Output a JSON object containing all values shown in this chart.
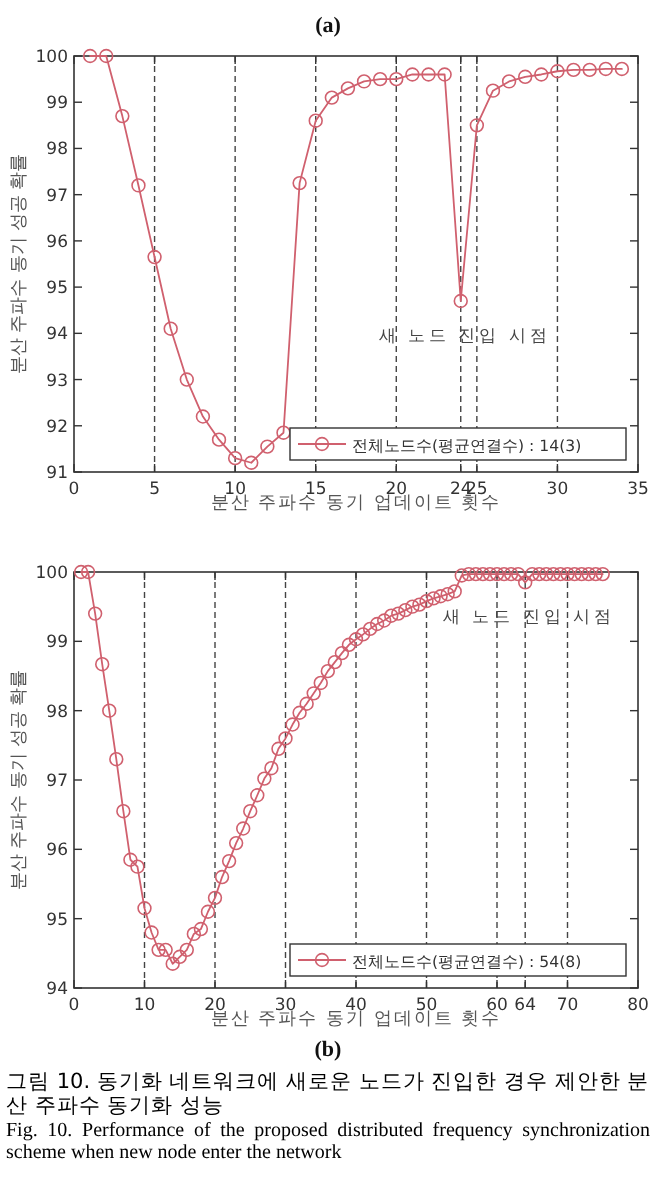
{
  "chart_data": [
    {
      "type": "line",
      "title": "(a)",
      "xlabel": "분산 주파수 동기 업데이트 횟수",
      "ylabel": "분산 주파수 동기 성공 확률",
      "x": [
        1,
        2,
        3,
        4,
        5,
        6,
        7,
        8,
        9,
        10,
        11,
        12,
        13,
        14,
        15,
        16,
        17,
        18,
        19,
        20,
        21,
        22,
        23,
        24,
        25,
        26,
        27,
        28,
        29,
        30,
        31,
        32,
        33,
        34
      ],
      "series": [
        {
          "name": "전체노드수(평균연결수) : 14(3)",
          "color": "#d0606e",
          "values": [
            100,
            100,
            98.7,
            97.2,
            95.65,
            94.1,
            93.0,
            92.2,
            91.7,
            91.3,
            91.2,
            91.55,
            91.85,
            97.25,
            98.6,
            99.1,
            99.3,
            99.45,
            99.5,
            99.5,
            99.6,
            99.6,
            99.6,
            94.7,
            98.5,
            99.25,
            99.45,
            99.55,
            99.6,
            99.67,
            99.7,
            99.7,
            99.72,
            99.72
          ]
        }
      ],
      "xlim": [
        0,
        35
      ],
      "ylim": [
        91,
        100
      ],
      "xticks": [
        0,
        5,
        10,
        15,
        20,
        24,
        25,
        30,
        35
      ],
      "yticks": [
        91,
        92,
        93,
        94,
        95,
        96,
        97,
        98,
        99,
        100
      ],
      "grid": "x",
      "legend": "bottom right",
      "marker": "circle",
      "line_style": "solid",
      "annotations": [
        {
          "text": "새 노드 진입 시점",
          "x": 24,
          "y": 94.7
        }
      ]
    },
    {
      "type": "line",
      "title": "(b)",
      "xlabel": "분산 주파수 동기 업데이트 횟수",
      "ylabel": "분산 주파수 동기 성공 확률",
      "x": [
        1,
        2,
        3,
        4,
        5,
        6,
        7,
        8,
        9,
        10,
        11,
        12,
        13,
        14,
        15,
        16,
        17,
        18,
        19,
        20,
        21,
        22,
        23,
        24,
        25,
        26,
        27,
        28,
        29,
        30,
        31,
        32,
        33,
        34,
        35,
        36,
        37,
        38,
        39,
        40,
        41,
        42,
        43,
        44,
        45,
        46,
        47,
        48,
        49,
        50,
        51,
        52,
        53,
        54,
        55,
        56,
        57,
        58,
        59,
        60,
        61,
        62,
        63,
        64,
        65,
        66,
        67,
        68,
        69,
        70,
        71,
        72,
        73,
        74,
        75
      ],
      "series": [
        {
          "name": "전체노드수(평균연결수) : 54(8)",
          "color": "#d0606e",
          "values": [
            100,
            100,
            99.4,
            98.67,
            98.0,
            97.3,
            96.55,
            95.85,
            95.75,
            95.15,
            94.8,
            94.55,
            94.55,
            94.35,
            94.45,
            94.55,
            94.78,
            94.85,
            95.1,
            95.3,
            95.6,
            95.83,
            96.09,
            96.3,
            96.55,
            96.78,
            97.02,
            97.17,
            97.45,
            97.6,
            97.8,
            97.97,
            98.1,
            98.25,
            98.4,
            98.57,
            98.7,
            98.83,
            98.95,
            99.03,
            99.1,
            99.18,
            99.25,
            99.3,
            99.37,
            99.4,
            99.45,
            99.5,
            99.53,
            99.58,
            99.62,
            99.65,
            99.68,
            99.72,
            99.95,
            99.97,
            99.97,
            99.97,
            99.97,
            99.97,
            99.97,
            99.97,
            99.97,
            99.85,
            99.97,
            99.97,
            99.97,
            99.97,
            99.97,
            99.97,
            99.97,
            99.97,
            99.97,
            99.97,
            99.97
          ]
        }
      ],
      "xlim": [
        0,
        80
      ],
      "ylim": [
        94,
        100
      ],
      "xticks": [
        0,
        10,
        20,
        30,
        40,
        50,
        60,
        64,
        70,
        80
      ],
      "yticks": [
        94,
        95,
        96,
        97,
        98,
        99,
        100
      ],
      "grid": "x",
      "legend": "bottom right",
      "marker": "circle",
      "line_style": "solid",
      "annotations": [
        {
          "text": "새 노드 진입 시점",
          "x": 64,
          "y": 99.85
        },
        "그림 10. 동기화 네트워크에 새로운 노드가 진입한 경우 제안한 분산 주파수 동기화 성능",
        "Fig. 10. Performance of the proposed distributed frequency synchronization scheme when new node enter the network"
      ]
    }
  ]
}
